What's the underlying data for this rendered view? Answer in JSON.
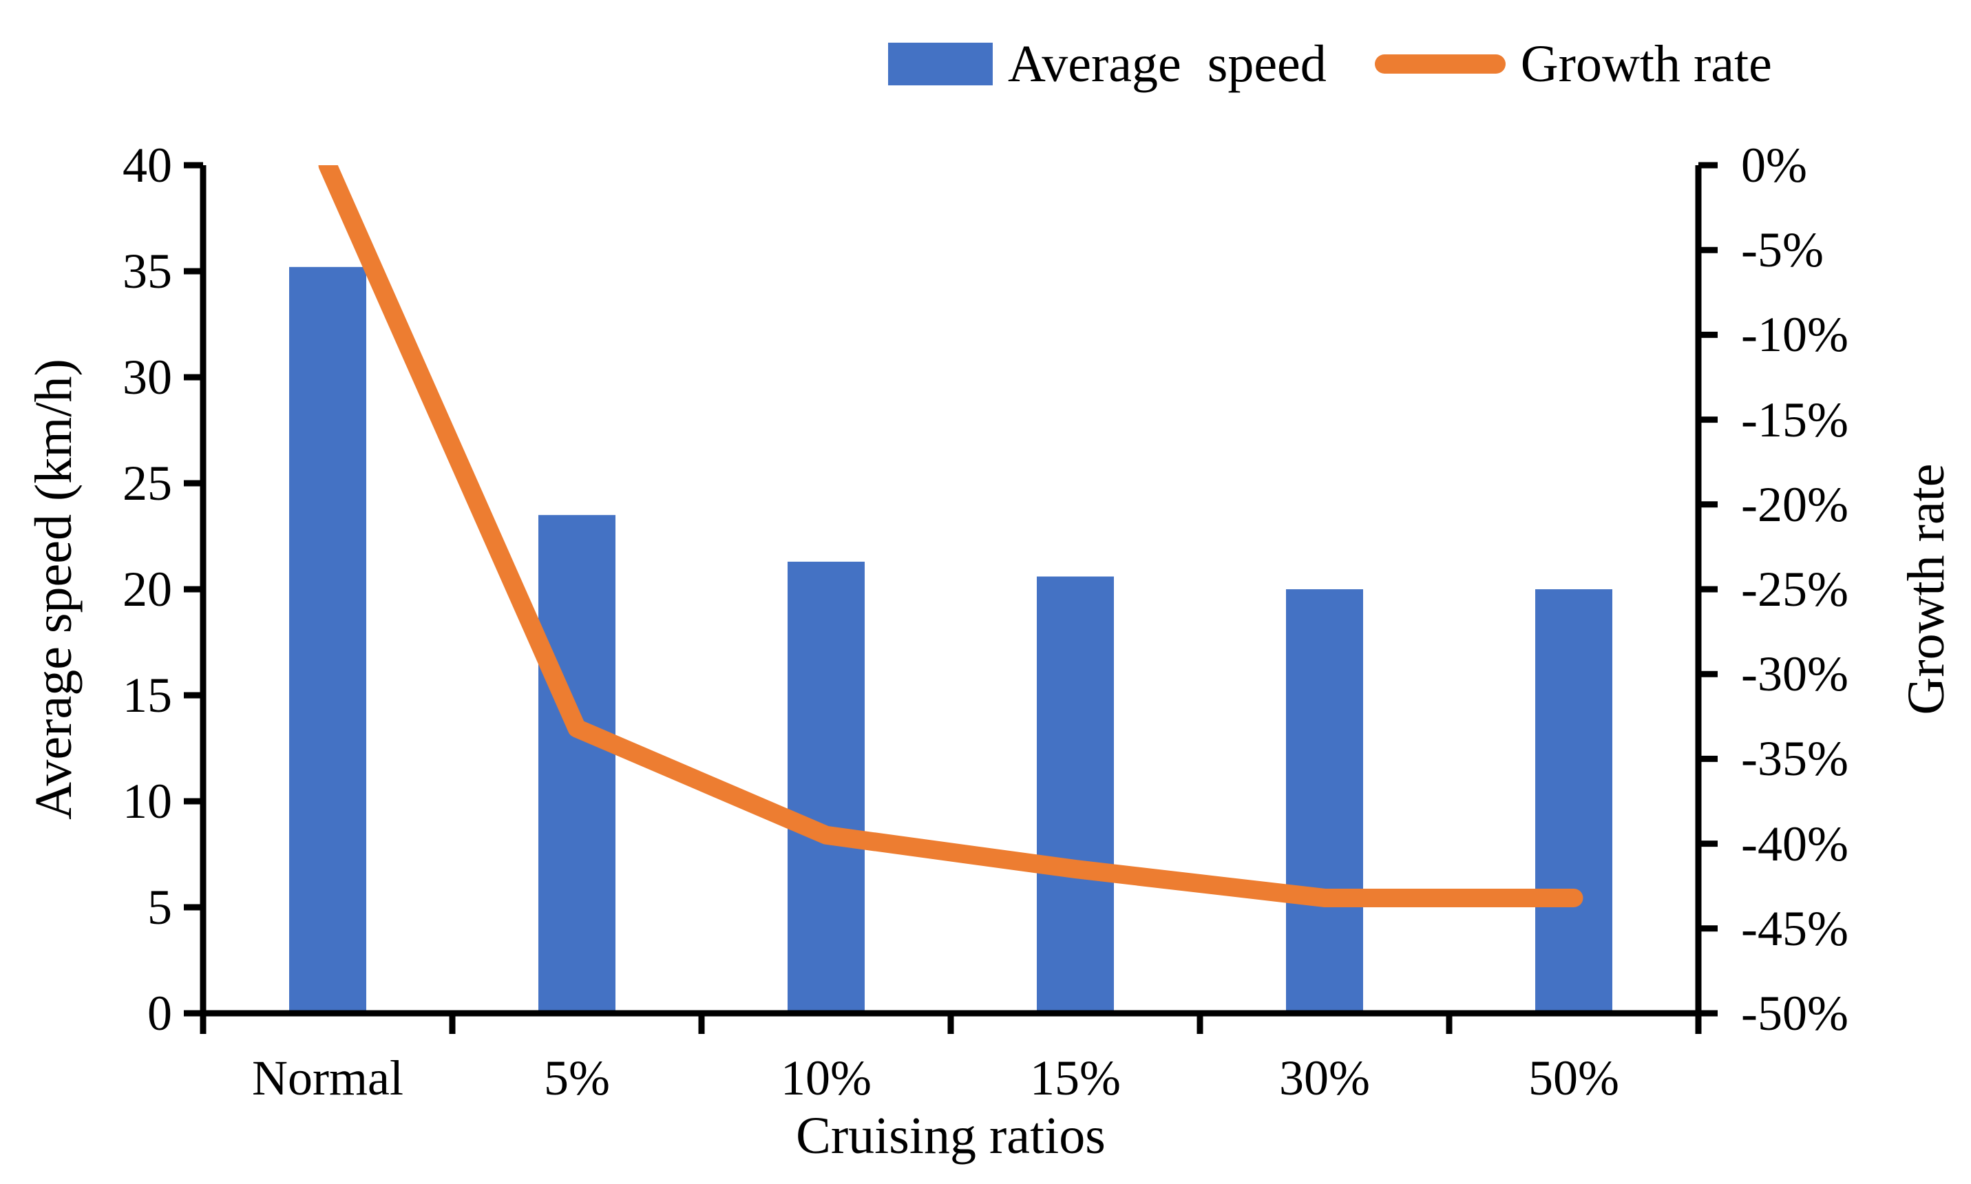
{
  "chart": {
    "legend": [
      {
        "label": "Average  speed",
        "type": "bar",
        "color": "#4472C4"
      },
      {
        "label": "Growth rate",
        "type": "line",
        "color": "#ED7D31"
      }
    ],
    "left_axis": {
      "title": "Average speed (km/h)",
      "tick_labels": [
        "0",
        "5",
        "10",
        "15",
        "20",
        "25",
        "30",
        "35",
        "40"
      ]
    },
    "right_axis": {
      "title": "Growth rate",
      "tick_labels": [
        "0%",
        "-5%",
        "-10%",
        "-15%",
        "-20%",
        "-25%",
        "-30%",
        "-35%",
        "-40%",
        "-45%",
        "-50%"
      ]
    },
    "x_axis": {
      "title": "Cruising ratios",
      "categories": [
        "Normal",
        "5%",
        "10%",
        "15%",
        "30%",
        "50%"
      ]
    }
  },
  "chart_data": {
    "type": "combo-bar-line",
    "title": "",
    "categories": [
      "Normal",
      "5%",
      "10%",
      "15%",
      "30%",
      "50%"
    ],
    "series": [
      {
        "name": "Average  speed",
        "type": "bar",
        "axis": "left",
        "color": "#4472C4",
        "values": [
          35.2,
          23.5,
          21.3,
          20.6,
          20.0,
          20.0
        ]
      },
      {
        "name": "Growth rate",
        "type": "line",
        "axis": "right",
        "color": "#ED7D31",
        "values_percent": [
          0,
          -33.2,
          -39.5,
          -41.5,
          -43.2,
          -43.2
        ]
      }
    ],
    "xlabel": "Cruising ratios",
    "ylabel_left": "Average speed (km/h)",
    "ylabel_right": "Growth rate",
    "ylim_left": [
      0,
      40
    ],
    "ylim_right": [
      -50,
      0
    ],
    "left_tick_step": 5,
    "right_tick_step": -5,
    "grid": false,
    "legend_position": "top-right",
    "axis_color": "#000000",
    "background": "#ffffff"
  }
}
